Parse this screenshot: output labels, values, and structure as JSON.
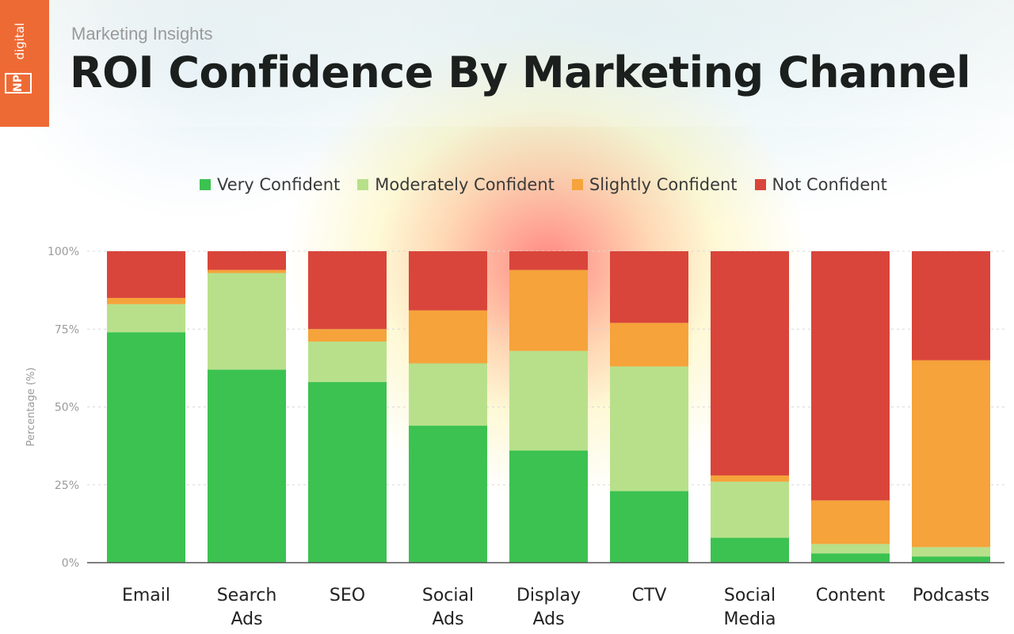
{
  "header": {
    "brand": {
      "np": "NP",
      "digital": "digital"
    },
    "eyebrow": "Marketing Insights",
    "title": "ROI Confidence By Marketing Channel"
  },
  "colors": {
    "very": "#3cc251",
    "moderate": "#b8e08a",
    "slight": "#f5a33a",
    "not": "#d9453a",
    "accent": "#ee6a35"
  },
  "chart_data": {
    "type": "bar",
    "stacked": true,
    "title": "ROI Confidence By Marketing Channel",
    "xlabel": "",
    "ylabel": "Percentage (%)",
    "ylim": [
      0,
      100
    ],
    "yticks": [
      "0%",
      "25%",
      "50%",
      "75%",
      "100%"
    ],
    "legend_position": "top",
    "categories": [
      [
        "Email"
      ],
      [
        "Search",
        "Ads"
      ],
      [
        "SEO"
      ],
      [
        "Social",
        "Ads"
      ],
      [
        "Display",
        "Ads"
      ],
      [
        "CTV"
      ],
      [
        "Social",
        "Media"
      ],
      [
        "Content"
      ],
      [
        "Podcasts"
      ]
    ],
    "series": [
      {
        "name": "Very Confident",
        "color": "#3cc251",
        "values": [
          74,
          62,
          58,
          44,
          36,
          23,
          8,
          3,
          2
        ]
      },
      {
        "name": "Moderately Confident",
        "color": "#b8e08a",
        "values": [
          9,
          31,
          13,
          20,
          32,
          40,
          18,
          3,
          3
        ]
      },
      {
        "name": "Slightly Confident",
        "color": "#f5a33a",
        "values": [
          2,
          1,
          4,
          17,
          26,
          14,
          2,
          14,
          60
        ]
      },
      {
        "name": "Not Confident",
        "color": "#d9453a",
        "values": [
          15,
          6,
          25,
          19,
          6,
          23,
          72,
          80,
          35
        ]
      }
    ]
  }
}
